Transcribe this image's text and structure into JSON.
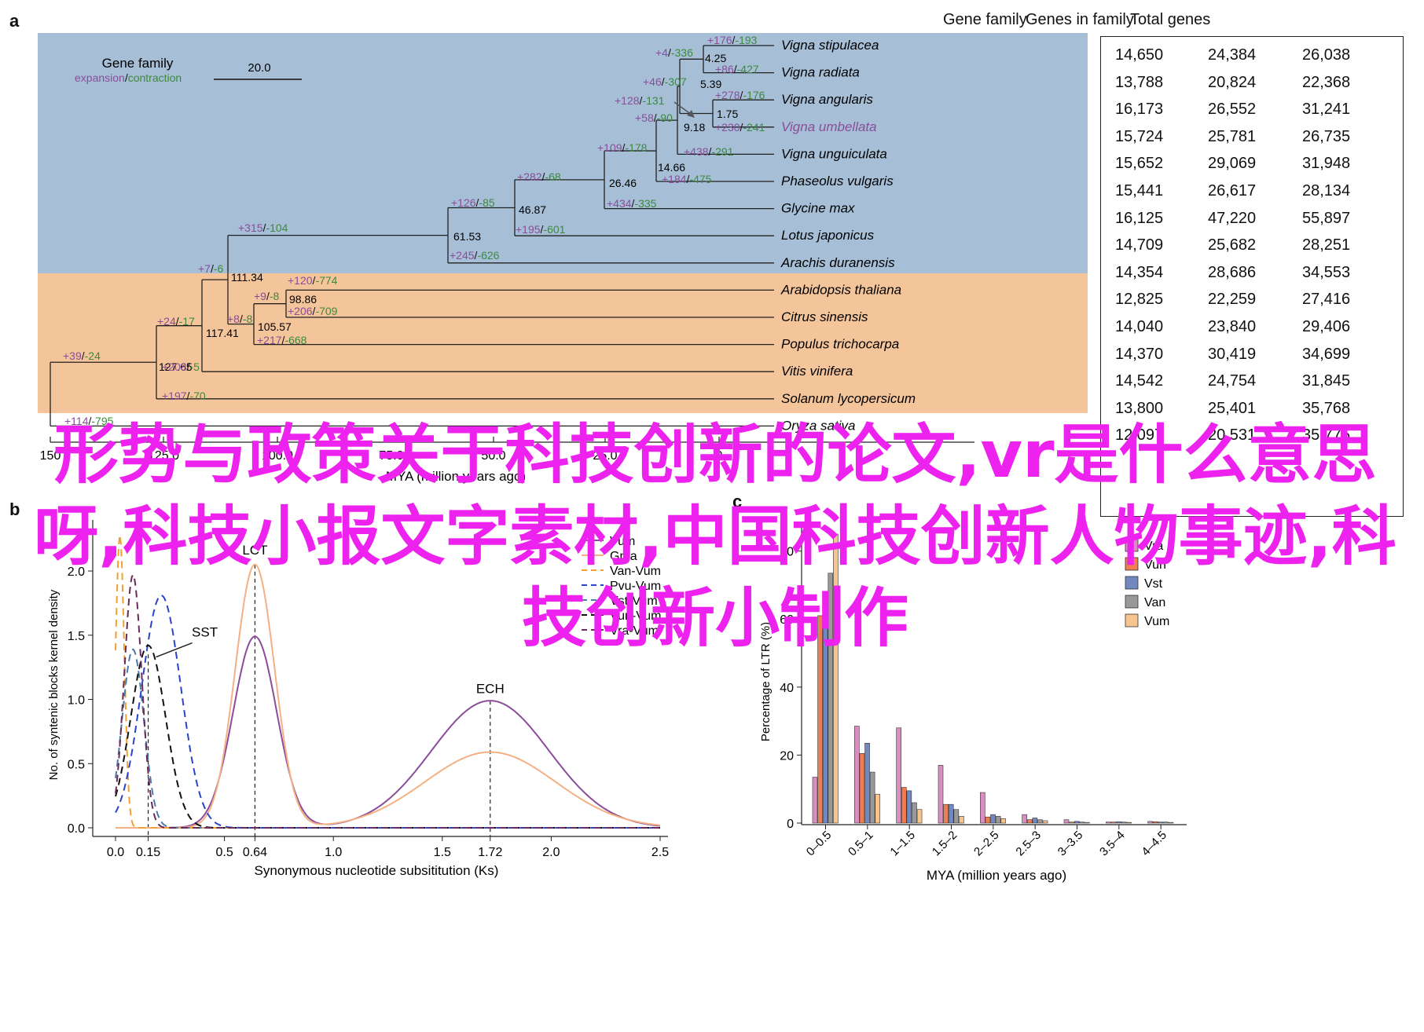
{
  "panels": {
    "a": "a",
    "b": "b",
    "c": "c"
  },
  "tree": {
    "legend": {
      "title": "Gene family",
      "expansion": "expansion",
      "slash": "/",
      "contraction": "contraction",
      "scale": "20.0"
    },
    "axis_ticks": [
      "150",
      "125.0",
      "100.0",
      "75.0",
      "50.0",
      "25.0",
      "0"
    ],
    "axis_label": "MYA (million years ago)",
    "colors": {
      "legume_bg": "#a6bfd7",
      "other_bg": "#f4c49b",
      "expansion": "#8b4c9a",
      "contraction": "#3c8a3c"
    },
    "species": [
      "Vigna stipulacea",
      "Vigna radiata",
      "Vigna angularis",
      "Vigna umbellata",
      "Vigna unguiculata",
      "Phaseolus vulgaris",
      "Glycine max",
      "Lotus japonicus",
      "Arachis duranensis",
      "Arabidopsis thaliana",
      "Citrus sinensis",
      "Populus trichocarpa",
      "Vitis vinifera",
      "Solanum lycopersicum",
      "Oryza sativa"
    ],
    "node_ages": [
      "4.25",
      "5.39",
      "1.75",
      "9.18",
      "14.66",
      "26.46",
      "46.87",
      "61.53",
      "111.34",
      "98.86",
      "105.57",
      "117.41",
      "127.65"
    ],
    "changes": [
      {
        "exp": "+176",
        "con": "193"
      },
      {
        "exp": "+4",
        "con": "336"
      },
      {
        "exp": "+86",
        "con": "427"
      },
      {
        "exp": "+46",
        "con": "307"
      },
      {
        "exp": "+278",
        "con": "176"
      },
      {
        "exp": "+128",
        "con": "131"
      },
      {
        "exp": "+58",
        "con": "90"
      },
      {
        "exp": "+230",
        "con": "241"
      },
      {
        "exp": "+109",
        "con": "178"
      },
      {
        "exp": "+438",
        "con": "291"
      },
      {
        "exp": "+184",
        "con": "475"
      },
      {
        "exp": "+282",
        "con": "68"
      },
      {
        "exp": "+434",
        "con": "335"
      },
      {
        "exp": "+126",
        "con": "85"
      },
      {
        "exp": "+195",
        "con": "601"
      },
      {
        "exp": "+315",
        "con": "104"
      },
      {
        "exp": "+245",
        "con": "626"
      },
      {
        "exp": "+7",
        "con": "6"
      },
      {
        "exp": "+120",
        "con": "774"
      },
      {
        "exp": "+9",
        "con": "8"
      },
      {
        "exp": "+206",
        "con": "709"
      },
      {
        "exp": "+8",
        "con": "8"
      },
      {
        "exp": "+217",
        "con": "668"
      },
      {
        "exp": "+24",
        "con": "17"
      },
      {
        "exp": "+39",
        "con": "24"
      },
      {
        "exp": "+208",
        "con": "5"
      },
      {
        "exp": "+197",
        "con": "70"
      },
      {
        "exp": "+114",
        "con": "795"
      }
    ]
  },
  "table": {
    "headers": [
      "Gene family",
      "Genes in family",
      "Total genes"
    ],
    "rows": [
      [
        "14,650",
        "24,384",
        "26,038"
      ],
      [
        "13,788",
        "20,824",
        "22,368"
      ],
      [
        "16,173",
        "26,552",
        "31,241"
      ],
      [
        "15,724",
        "25,781",
        "26,735"
      ],
      [
        "15,652",
        "29,069",
        "31,948"
      ],
      [
        "15,441",
        "26,617",
        "28,134"
      ],
      [
        "16,125",
        "47,220",
        "55,897"
      ],
      [
        "14,709",
        "25,682",
        "28,251"
      ],
      [
        "14,354",
        "28,686",
        "34,553"
      ],
      [
        "12,825",
        "22,259",
        "27,416"
      ],
      [
        "14,040",
        "23,840",
        "29,406"
      ],
      [
        "14,370",
        "30,419",
        "34,699"
      ],
      [
        "14,542",
        "24,754",
        "31,845"
      ],
      [
        "13,800",
        "25,401",
        "35,768"
      ],
      [
        "12,097",
        "20,531",
        "35,775"
      ]
    ]
  },
  "overlay_text": "形势与政策关于科技创新的论文,vr是什么意思呀,科技小报文字素材,中国科技创新人物事迹,科技创新小制作",
  "chart_data": [
    {
      "type": "line",
      "xlabel": "Synonymous nucleotide subsititution (Ks)",
      "ylabel": "No. of syntenic blocks kernel density",
      "xlim": [
        0.0,
        2.5
      ],
      "ylim": [
        0.0,
        2.3
      ],
      "xticks": [
        "0.0",
        "0.15",
        "0.5",
        "0.64",
        "1.0",
        "1.5",
        "1.72",
        "2.0",
        "2.5"
      ],
      "yticks": [
        "0.0",
        "0.5",
        "1.0",
        "1.5",
        "2.0"
      ],
      "annotations": [
        {
          "text": "LCT",
          "x": 0.64
        },
        {
          "text": "ECH",
          "x": 1.72
        },
        {
          "text": "SST",
          "x": 0.15
        }
      ],
      "legend_position": "top-right",
      "series": [
        {
          "name": "Vum",
          "color": "#8b4c9a",
          "style": "solid",
          "peaks": [
            {
              "mu": 0.64,
              "sigma": 0.1,
              "h": 1.49
            },
            {
              "mu": 1.72,
              "sigma": 0.27,
              "h": 0.99
            }
          ]
        },
        {
          "name": "Gma",
          "color": "#f4b183",
          "style": "solid",
          "peaks": [
            {
              "mu": 0.64,
              "sigma": 0.09,
              "h": 2.05
            },
            {
              "mu": 1.72,
              "sigma": 0.3,
              "h": 0.59
            }
          ]
        },
        {
          "name": "Van-Vum",
          "color": "#f0a030",
          "style": "dashed",
          "peaks": [
            {
              "mu": 0.02,
              "sigma": 0.02,
              "h": 2.28
            }
          ]
        },
        {
          "name": "Pvu-Vum",
          "color": "#2a44c8",
          "style": "dashed",
          "peaks": [
            {
              "mu": 0.21,
              "sigma": 0.09,
              "h": 1.81
            }
          ]
        },
        {
          "name": "Vst-Vum",
          "color": "#4a7aa8",
          "style": "dashed",
          "peaks": [
            {
              "mu": 0.08,
              "sigma": 0.05,
              "h": 1.39
            }
          ]
        },
        {
          "name": "Vun-Vum",
          "color": "#111111",
          "style": "dashed",
          "peaks": [
            {
              "mu": 0.15,
              "sigma": 0.08,
              "h": 1.42
            }
          ]
        },
        {
          "name": "Vra-Vum",
          "color": "#6a2a5a",
          "style": "dashed",
          "peaks": [
            {
              "mu": 0.08,
              "sigma": 0.04,
              "h": 1.97
            }
          ]
        }
      ]
    },
    {
      "type": "bar",
      "xlabel": "MYA (million years ago)",
      "ylabel": "Percentage of LTR (%)",
      "ylim": [
        0,
        85
      ],
      "yticks": [
        "0",
        "20",
        "40",
        "60",
        "80"
      ],
      "categories": [
        "0–0.5",
        "0.5–1",
        "1–1.5",
        "1.5–2",
        "2–2.5",
        "2.5–3",
        "3–3.5",
        "3.5–4",
        "4–4.5"
      ],
      "legend_position": "top-right",
      "series": [
        {
          "name": "Vra",
          "color": "#d88fc0",
          "values": [
            13.5,
            28.5,
            28.0,
            17.0,
            9.0,
            2.5,
            1.0,
            0.3,
            0.5
          ]
        },
        {
          "name": "Vun",
          "color": "#ee7d4f",
          "values": [
            61.0,
            20.5,
            10.5,
            5.5,
            1.8,
            1.0,
            0.3,
            0.3,
            0.4
          ]
        },
        {
          "name": "Vst",
          "color": "#7488c0",
          "values": [
            58.0,
            23.5,
            9.5,
            5.5,
            2.5,
            1.5,
            0.5,
            0.4,
            0.3
          ]
        },
        {
          "name": "Van",
          "color": "#999999",
          "values": [
            73.5,
            15.0,
            6.0,
            4.0,
            2.0,
            1.0,
            0.3,
            0.3,
            0.3
          ]
        },
        {
          "name": "Vum",
          "color": "#f6c48e",
          "values": [
            85.0,
            8.5,
            4.0,
            2.0,
            1.3,
            0.7,
            0.2,
            0.2,
            0.2
          ]
        }
      ]
    }
  ]
}
